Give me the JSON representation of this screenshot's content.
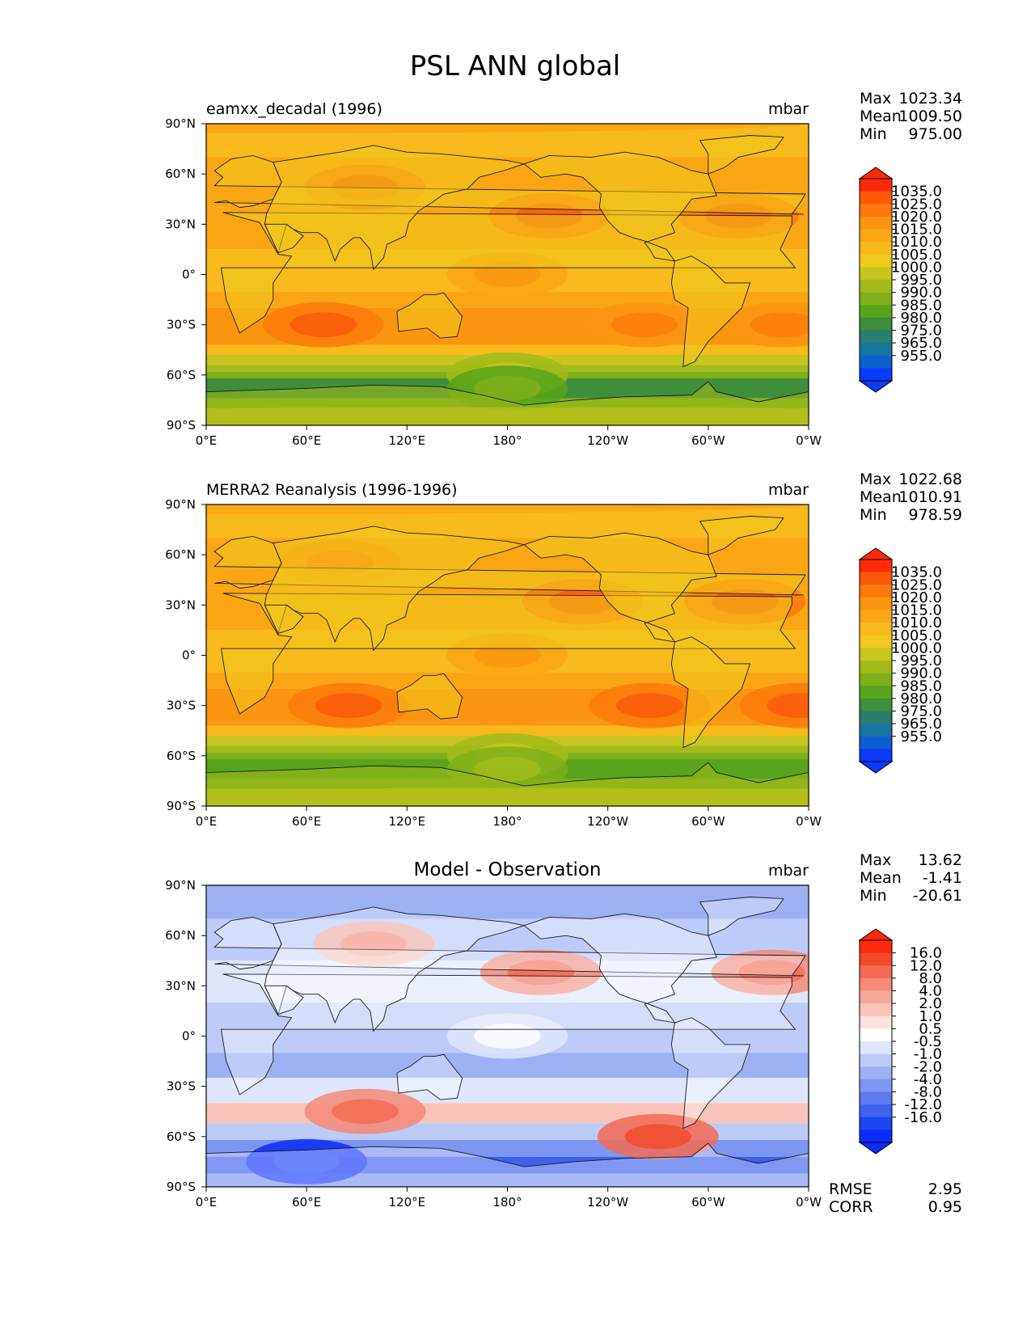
{
  "title": "PSL ANN global",
  "colors": {
    "ocean_base": "#f4b21c",
    "coast": "#1a1a1a"
  },
  "chart_data": [
    {
      "type": "heatmap",
      "panel_title_left": "eamxx_decadal (1996)",
      "panel_title_center": "",
      "units": "mbar",
      "stats": {
        "labels": [
          "Max",
          "Mean",
          "Min"
        ],
        "values": [
          "1023.34",
          "1009.50",
          "975.00"
        ]
      },
      "colorbar": {
        "ticks": [
          "1035.0",
          "1025.0",
          "1020.0",
          "1015.0",
          "1010.0",
          "1005.0",
          "1000.0",
          "995.0",
          "990.0",
          "985.0",
          "980.0",
          "975.0",
          "965.0",
          "955.0"
        ],
        "colors": [
          "#ff2a0a",
          "#fa5a0a",
          "#fb7a0b",
          "#fb950f",
          "#faa614",
          "#f8ba1c",
          "#f1c81e",
          "#c8c51f",
          "#a2bb1a",
          "#7fb01a",
          "#58a41c",
          "#3f8e3c",
          "#2a7d6c",
          "#1676a0",
          "#0d5fd0",
          "#0a3afa"
        ]
      },
      "x_ticks": [
        "0°E",
        "60°E",
        "120°E",
        "180°",
        "120°W",
        "60°W",
        "0°W"
      ],
      "y_ticks": [
        "90°N",
        "60°N",
        "30°N",
        "0°",
        "30°S",
        "60°S",
        "90°S"
      ],
      "xlim": [
        0,
        360
      ],
      "ylim": [
        -90,
        90
      ],
      "field": [
        {
          "lat": 90,
          "lon": 0,
          "label": "1012"
        },
        {
          "lat": 52,
          "lon": 95,
          "label": "1022"
        },
        {
          "lat": 35,
          "lon": 205,
          "label": "1024"
        },
        {
          "lat": 35,
          "lon": 318,
          "label": "1022"
        },
        {
          "lat": 0,
          "lon": 180,
          "label": "1010"
        },
        {
          "lat": -30,
          "lon": 70,
          "label": "1020"
        },
        {
          "lat": -30,
          "lon": 262,
          "label": "1019"
        },
        {
          "lat": -30,
          "lon": 345,
          "label": "1019"
        },
        {
          "lat": -60,
          "lon": 180,
          "label": "990"
        },
        {
          "lat": -68,
          "lon": 180,
          "label": "980"
        },
        {
          "lat": -85,
          "lon": 180,
          "label": "995"
        }
      ]
    },
    {
      "type": "heatmap",
      "panel_title_left": "MERRA2 Reanalysis (1996-1996)",
      "panel_title_center": "",
      "units": "mbar",
      "stats": {
        "labels": [
          "Max",
          "Mean",
          "Min"
        ],
        "values": [
          "1022.68",
          "1010.91",
          "978.59"
        ]
      },
      "colorbar": {
        "ticks": [
          "1035.0",
          "1025.0",
          "1020.0",
          "1015.0",
          "1010.0",
          "1005.0",
          "1000.0",
          "995.0",
          "990.0",
          "985.0",
          "980.0",
          "975.0",
          "965.0",
          "955.0"
        ],
        "colors": [
          "#ff2a0a",
          "#fa5a0a",
          "#fb7a0b",
          "#fb950f",
          "#faa614",
          "#f8ba1c",
          "#f1c81e",
          "#c8c51f",
          "#a2bb1a",
          "#7fb01a",
          "#58a41c",
          "#3f8e3c",
          "#2a7d6c",
          "#1676a0",
          "#0d5fd0",
          "#0a3afa"
        ]
      },
      "x_ticks": [
        "0°E",
        "60°E",
        "120°E",
        "180°",
        "120°W",
        "60°W",
        "0°W"
      ],
      "y_ticks": [
        "90°N",
        "60°N",
        "30°N",
        "0°",
        "30°S",
        "60°S",
        "90°S"
      ],
      "xlim": [
        0,
        360
      ],
      "ylim": [
        -90,
        90
      ],
      "field": [
        {
          "lat": 90,
          "lon": 0,
          "label": "1013"
        },
        {
          "lat": 55,
          "lon": 80,
          "label": "1019"
        },
        {
          "lat": 32,
          "lon": 225,
          "label": "1021"
        },
        {
          "lat": 32,
          "lon": 322,
          "label": "1022"
        },
        {
          "lat": 0,
          "lon": 180,
          "label": "1011"
        },
        {
          "lat": -30,
          "lon": 85,
          "label": "1020"
        },
        {
          "lat": -30,
          "lon": 265,
          "label": "1021"
        },
        {
          "lat": -30,
          "lon": 355,
          "label": "1020"
        },
        {
          "lat": -60,
          "lon": 180,
          "label": "990"
        },
        {
          "lat": -68,
          "lon": 180,
          "label": "985"
        },
        {
          "lat": -85,
          "lon": 180,
          "label": "998"
        }
      ]
    },
    {
      "type": "heatmap",
      "panel_title_left": "",
      "panel_title_center": "Model - Observation",
      "units": "mbar",
      "stats": {
        "labels": [
          "Max",
          "Mean",
          "Min"
        ],
        "values": [
          "13.62",
          "-1.41",
          "-20.61"
        ]
      },
      "colorbar": {
        "ticks": [
          "16.0",
          "12.0",
          "8.0",
          "4.0",
          "2.0",
          "1.0",
          "0.5",
          "-0.5",
          "-1.0",
          "-2.0",
          "-4.0",
          "-8.0",
          "-12.0",
          "-16.0"
        ],
        "colors": [
          "#ff2a0a",
          "#f44a2c",
          "#f56a54",
          "#f58a78",
          "#f6a898",
          "#f8c4b8",
          "#fbe2dc",
          "#ffffff",
          "#dfe6fb",
          "#bdcbf8",
          "#9cb0f4",
          "#7c96f1",
          "#5d7cee",
          "#3e62ec",
          "#1c46f2",
          "#0a2bfa"
        ]
      },
      "x_ticks": [
        "0°E",
        "60°E",
        "120°E",
        "180°",
        "120°W",
        "60°W",
        "0°W"
      ],
      "y_ticks": [
        "90°N",
        "60°N",
        "30°N",
        "0°",
        "30°S",
        "60°S",
        "90°S"
      ],
      "xlim": [
        0,
        360
      ],
      "ylim": [
        -90,
        90
      ],
      "field": [
        {
          "lat": 55,
          "lon": 100,
          "label": "3"
        },
        {
          "lat": 38,
          "lon": 200,
          "label": "6"
        },
        {
          "lat": 38,
          "lon": 338,
          "label": "5"
        },
        {
          "lat": -45,
          "lon": 95,
          "label": "5"
        },
        {
          "lat": -60,
          "lon": 270,
          "label": "8"
        },
        {
          "lat": -75,
          "lon": 60,
          "label": "-18"
        },
        {
          "lat": 0,
          "lon": 180,
          "label": "-1"
        }
      ],
      "rmse_label": "RMSE",
      "rmse_value": "2.95",
      "corr_label": "CORR",
      "corr_value": "0.95"
    }
  ]
}
